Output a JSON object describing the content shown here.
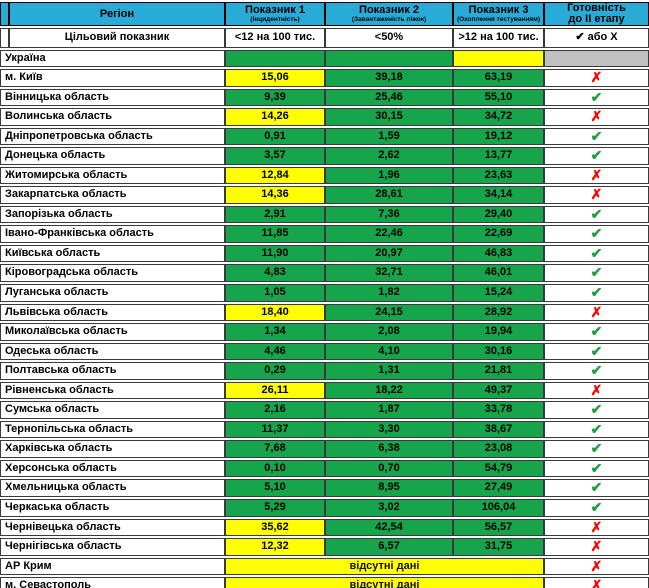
{
  "chart_data": {
    "type": "table",
    "headers": {
      "region": "Регіон",
      "indicator1": {
        "title": "Показник 1",
        "subtitle": "(Інцидентність)"
      },
      "indicator2": {
        "title": "Показник 2",
        "subtitle": "(Завантаженість ліжок)"
      },
      "indicator3": {
        "title": "Показник 3",
        "subtitle": "(Охоплення тестуванням)"
      },
      "readiness": {
        "line1": "Готовність",
        "line2": "до ІІ етапу"
      }
    },
    "target_row": {
      "label": "Цільовий показник",
      "indicator1": "<12 на 100 тис.",
      "indicator2": "<50%",
      "indicator3": ">12 на 100 тис.",
      "readiness": "✔ або Х"
    },
    "rows": [
      {
        "region": "Україна",
        "v1": "",
        "bg1": "green",
        "v2": "",
        "bg2": "green",
        "v3": "",
        "bg3": "yellow",
        "mark": "none",
        "mark_bg": "gray"
      },
      {
        "region": "м. Київ",
        "v1": "15,06",
        "bg1": "yellow",
        "v2": "39,18",
        "bg2": "green",
        "v3": "63,19",
        "bg3": "green",
        "mark": "cross",
        "mark_bg": "white"
      },
      {
        "region": "Вінницька область",
        "v1": "9,39",
        "bg1": "green",
        "v2": "25,46",
        "bg2": "green",
        "v3": "55,10",
        "bg3": "green",
        "mark": "check",
        "mark_bg": "white"
      },
      {
        "region": "Волинська область",
        "v1": "14,26",
        "bg1": "yellow",
        "v2": "30,15",
        "bg2": "green",
        "v3": "34,72",
        "bg3": "green",
        "mark": "cross",
        "mark_bg": "white"
      },
      {
        "region": "Дніпропетровська область",
        "v1": "0,91",
        "bg1": "green",
        "v2": "1,59",
        "bg2": "green",
        "v3": "19,12",
        "bg3": "green",
        "mark": "check",
        "mark_bg": "white"
      },
      {
        "region": "Донецька область",
        "v1": "3,57",
        "bg1": "green",
        "v2": "2,62",
        "bg2": "green",
        "v3": "13,77",
        "bg3": "green",
        "mark": "check",
        "mark_bg": "white"
      },
      {
        "region": "Житомирська область",
        "v1": "12,84",
        "bg1": "yellow",
        "v2": "1,96",
        "bg2": "green",
        "v3": "23,63",
        "bg3": "green",
        "mark": "cross",
        "mark_bg": "white"
      },
      {
        "region": "Закарпатська область",
        "v1": "14,36",
        "bg1": "yellow",
        "v2": "28,61",
        "bg2": "green",
        "v3": "34,14",
        "bg3": "green",
        "mark": "cross",
        "mark_bg": "white"
      },
      {
        "region": "Запорізька область",
        "v1": "2,91",
        "bg1": "green",
        "v2": "7,36",
        "bg2": "green",
        "v3": "29,40",
        "bg3": "green",
        "mark": "check",
        "mark_bg": "white"
      },
      {
        "region": "Івано-Франківська область",
        "v1": "11,85",
        "bg1": "green",
        "v2": "22,46",
        "bg2": "green",
        "v3": "22,69",
        "bg3": "green",
        "mark": "check",
        "mark_bg": "white"
      },
      {
        "region": "Київська область",
        "v1": "11,90",
        "bg1": "green",
        "v2": "20,97",
        "bg2": "green",
        "v3": "46,83",
        "bg3": "green",
        "mark": "check",
        "mark_bg": "white"
      },
      {
        "region": "Кіровоградська область",
        "v1": "4,83",
        "bg1": "green",
        "v2": "32,71",
        "bg2": "green",
        "v3": "46,01",
        "bg3": "green",
        "mark": "check",
        "mark_bg": "white"
      },
      {
        "region": "Луганська область",
        "v1": "1,05",
        "bg1": "green",
        "v2": "1,82",
        "bg2": "green",
        "v3": "15,24",
        "bg3": "green",
        "mark": "check",
        "mark_bg": "white"
      },
      {
        "region": "Львівська область",
        "v1": "18,40",
        "bg1": "yellow",
        "v2": "24,15",
        "bg2": "green",
        "v3": "28,92",
        "bg3": "green",
        "mark": "cross",
        "mark_bg": "white"
      },
      {
        "region": "Миколаївська область",
        "v1": "1,34",
        "bg1": "green",
        "v2": "2,08",
        "bg2": "green",
        "v3": "19,94",
        "bg3": "green",
        "mark": "check",
        "mark_bg": "white"
      },
      {
        "region": "Одеська область",
        "v1": "4,46",
        "bg1": "green",
        "v2": "4,10",
        "bg2": "green",
        "v3": "30,16",
        "bg3": "green",
        "mark": "check",
        "mark_bg": "white"
      },
      {
        "region": "Полтавська область",
        "v1": "0,29",
        "bg1": "green",
        "v2": "1,31",
        "bg2": "green",
        "v3": "21,81",
        "bg3": "green",
        "mark": "check",
        "mark_bg": "white"
      },
      {
        "region": "Рівненська область",
        "v1": "26,11",
        "bg1": "yellow",
        "v2": "18,22",
        "bg2": "green",
        "v3": "49,37",
        "bg3": "green",
        "mark": "cross",
        "mark_bg": "white"
      },
      {
        "region": "Сумська область",
        "v1": "2,16",
        "bg1": "green",
        "v2": "1,87",
        "bg2": "green",
        "v3": "33,78",
        "bg3": "green",
        "mark": "check",
        "mark_bg": "white"
      },
      {
        "region": "Тернопільська область",
        "v1": "11,37",
        "bg1": "green",
        "v2": "3,30",
        "bg2": "green",
        "v3": "38,67",
        "bg3": "green",
        "mark": "check",
        "mark_bg": "white"
      },
      {
        "region": "Харківська область",
        "v1": "7,68",
        "bg1": "green",
        "v2": "6,38",
        "bg2": "green",
        "v3": "23,08",
        "bg3": "green",
        "mark": "check",
        "mark_bg": "white"
      },
      {
        "region": "Херсонська область",
        "v1": "0,10",
        "bg1": "green",
        "v2": "0,70",
        "bg2": "green",
        "v3": "54,79",
        "bg3": "green",
        "mark": "check",
        "mark_bg": "white"
      },
      {
        "region": "Хмельницька область",
        "v1": "5,10",
        "bg1": "green",
        "v2": "8,95",
        "bg2": "green",
        "v3": "27,49",
        "bg3": "green",
        "mark": "check",
        "mark_bg": "white"
      },
      {
        "region": "Черкаська область",
        "v1": "5,29",
        "bg1": "green",
        "v2": "3,02",
        "bg2": "green",
        "v3": "106,04",
        "bg3": "green",
        "mark": "check",
        "mark_bg": "white"
      },
      {
        "region": "Чернівецька область",
        "v1": "35,62",
        "bg1": "yellow",
        "v2": "42,54",
        "bg2": "green",
        "v3": "56,57",
        "bg3": "green",
        "mark": "cross",
        "mark_bg": "white"
      },
      {
        "region": "Чернігівська область",
        "v1": "12,32",
        "bg1": "yellow",
        "v2": "6,57",
        "bg2": "green",
        "v3": "31,75",
        "bg3": "green",
        "mark": "cross",
        "mark_bg": "white"
      },
      {
        "region": "АР Крим",
        "no_data": "відсутні дані",
        "no_data_bg": "yellow",
        "mark": "cross",
        "mark_bg": "white"
      },
      {
        "region": "м. Севастополь",
        "no_data": "відсутні дані",
        "no_data_bg": "yellow",
        "mark": "cross",
        "mark_bg": "white"
      }
    ]
  },
  "icons": {
    "check": "✔",
    "cross": "✗"
  },
  "colors": {
    "header_cyan": "#29ABD8",
    "cell_green": "#16A54A",
    "cell_yellow": "#FFFF00",
    "cell_gray": "#C0C0C0",
    "border": "#3a3a3a",
    "check_green": "#1E9E43",
    "cross_red": "#FF0000"
  }
}
